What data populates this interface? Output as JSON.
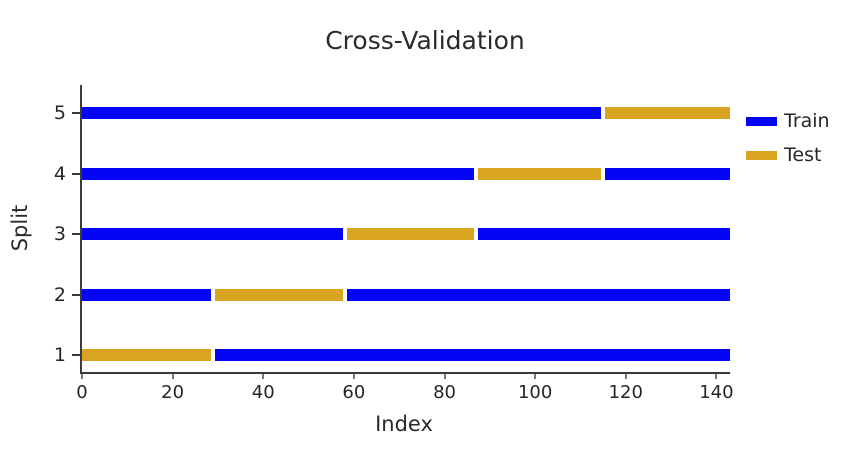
{
  "title": "Cross-Validation",
  "colors": {
    "train": "#0505f5",
    "test": "#d9a521",
    "axis": "#3b3b3b",
    "text": "#262626"
  },
  "legend": {
    "position": "right",
    "items": [
      {
        "label": "Train",
        "color": "#0505f5"
      },
      {
        "label": "Test",
        "color": "#d9a521"
      }
    ]
  },
  "chart_data": {
    "type": "bar",
    "orientation": "horizontal",
    "title": "Cross-Validation",
    "xlabel": "Index",
    "ylabel": "Split",
    "xlim": [
      0,
      143
    ],
    "x_ticks": [
      "0",
      "20",
      "40",
      "60",
      "80",
      "100",
      "120",
      "140"
    ],
    "x_tick_values": [
      0,
      20,
      40,
      60,
      80,
      100,
      120,
      140
    ],
    "y_tick_labels": [
      "5",
      "4",
      "3",
      "2",
      "1"
    ],
    "n_samples": 143,
    "n_splits": 5,
    "grid": false,
    "legend_position": "right",
    "series": [
      {
        "name": "Train",
        "color": "#0505f5"
      },
      {
        "name": "Test",
        "color": "#d9a521"
      }
    ],
    "splits": [
      {
        "split": 1,
        "test_segments": [
          [
            0,
            29
          ]
        ],
        "train_segments": [
          [
            29,
            143
          ]
        ]
      },
      {
        "split": 2,
        "test_segments": [
          [
            29,
            58
          ]
        ],
        "train_segments": [
          [
            0,
            29
          ],
          [
            58,
            143
          ]
        ]
      },
      {
        "split": 3,
        "test_segments": [
          [
            58,
            87
          ]
        ],
        "train_segments": [
          [
            0,
            58
          ],
          [
            87,
            143
          ]
        ]
      },
      {
        "split": 4,
        "test_segments": [
          [
            87,
            115
          ]
        ],
        "train_segments": [
          [
            0,
            87
          ],
          [
            115,
            143
          ]
        ]
      },
      {
        "split": 5,
        "test_segments": [
          [
            115,
            143
          ]
        ],
        "train_segments": [
          [
            0,
            115
          ]
        ]
      }
    ]
  }
}
